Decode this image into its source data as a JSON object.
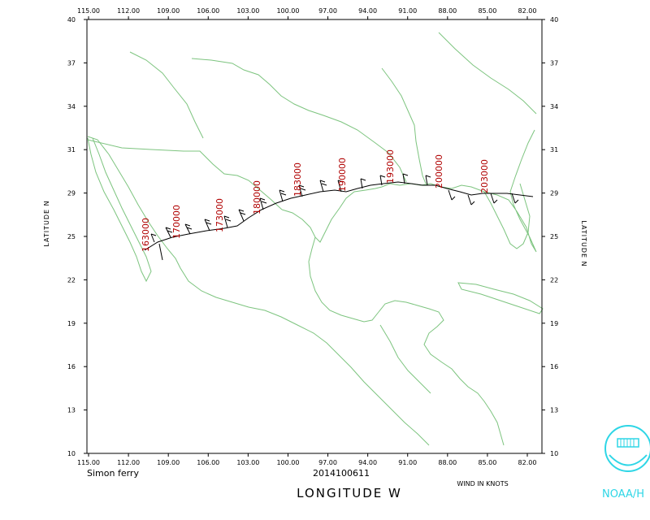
{
  "map": {
    "axes": {
      "lon_ticks": [
        "115.00",
        "112.00",
        "109.00",
        "106.00",
        "103.00",
        "100.00",
        "97.00",
        "94.00",
        "91.00",
        "88.00",
        "85.00",
        "82.00"
      ],
      "lat_ticks": [
        "40",
        "37",
        "34",
        "31",
        "29",
        "25",
        "22",
        "19",
        "16",
        "13",
        "10"
      ],
      "lon_range": [
        -115,
        -80
      ],
      "lat_range": [
        10,
        40
      ],
      "x_axis_label": "LONGITUDE   W",
      "y_axis_label": "LATITUDE   N"
    },
    "footer": {
      "left_label": "Simon ferry",
      "center_label": "2014100611",
      "right_label": "WIND IN KNOTS"
    },
    "logo": {
      "text": "NOAA/H"
    },
    "track": {
      "time_labels": [
        "163000",
        "170000",
        "173000",
        "180000",
        "183000",
        "190000",
        "193000",
        "200000",
        "203000"
      ],
      "label_color": "#b00000",
      "track_color": "#000000",
      "coast_color": "#7dc47f"
    }
  }
}
